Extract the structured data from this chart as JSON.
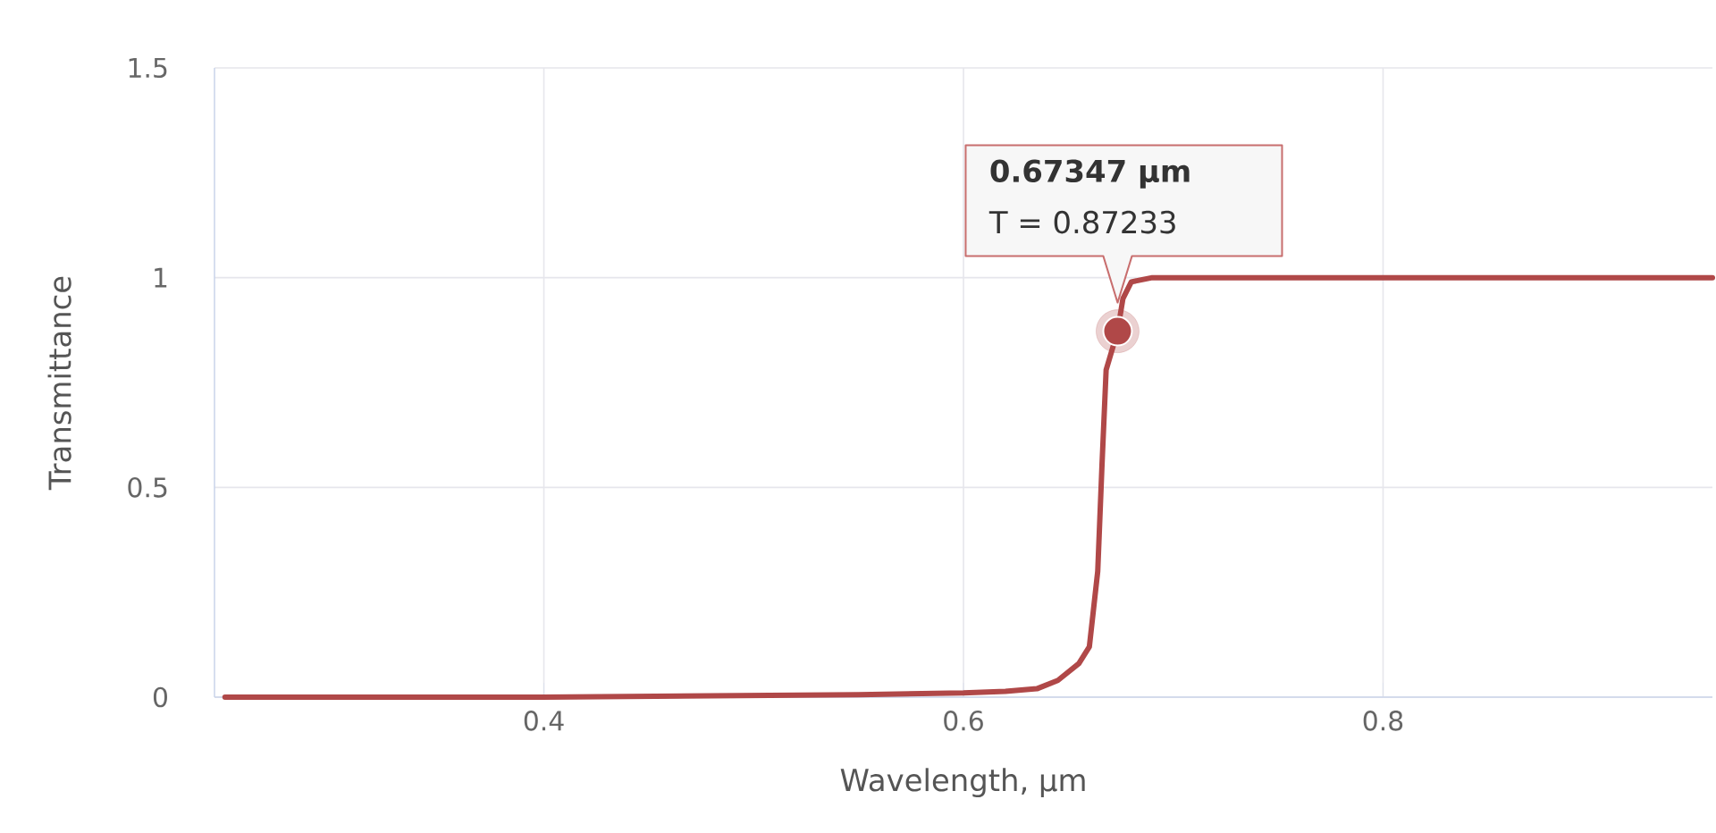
{
  "chart_data": {
    "type": "line",
    "xlabel": "Wavelength, µm",
    "ylabel": "Transmittance",
    "x": [
      0.248,
      0.3,
      0.35,
      0.4,
      0.45,
      0.5,
      0.55,
      0.6,
      0.62,
      0.635,
      0.645,
      0.655,
      0.66,
      0.664,
      0.666,
      0.668,
      0.67347,
      0.676,
      0.68,
      0.69,
      0.72,
      0.8,
      0.9,
      0.957
    ],
    "series": [
      {
        "color": "#b04848",
        "values": [
          0,
          0,
          0,
          0,
          0.002,
          0.004,
          0.006,
          0.01,
          0.014,
          0.02,
          0.04,
          0.08,
          0.12,
          0.3,
          0.55,
          0.78,
          0.87233,
          0.95,
          0.99,
          1,
          1,
          1,
          1,
          1
        ]
      },
      {
        "type": "scatter",
        "color": "#b04848",
        "x": [
          0.67347
        ],
        "values": [
          0.87233
        ]
      }
    ],
    "xlim": [
      0.243,
      0.957
    ],
    "ylim": [
      0,
      1.5
    ],
    "xticks": [
      0.4,
      0.6,
      0.8
    ],
    "yticks": [
      0,
      0.5,
      1,
      1.5
    ],
    "grid": true,
    "line_style": "solid",
    "annotations": [
      "0.67347 µm",
      "T = 0.87233"
    ]
  }
}
